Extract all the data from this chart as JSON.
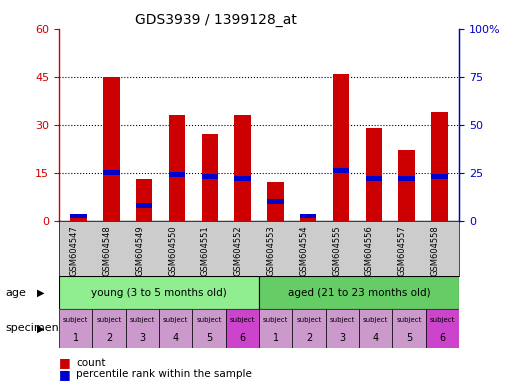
{
  "title": "GDS3939 / 1399128_at",
  "samples": [
    "GSM604547",
    "GSM604548",
    "GSM604549",
    "GSM604550",
    "GSM604551",
    "GSM604552",
    "GSM604553",
    "GSM604554",
    "GSM604555",
    "GSM604556",
    "GSM604557",
    "GSM604558"
  ],
  "count_values": [
    2,
    45,
    13,
    33,
    27,
    33,
    12,
    2,
    46,
    29,
    22,
    34
  ],
  "percentile_values_pct": [
    2.5,
    25,
    8,
    24,
    23,
    22,
    10,
    2.5,
    26,
    22,
    22,
    23
  ],
  "count_color": "#cc0000",
  "percentile_color": "#0000cc",
  "ylim_left": [
    0,
    60
  ],
  "ylim_right": [
    0,
    100
  ],
  "yticks_left": [
    0,
    15,
    30,
    45,
    60
  ],
  "ytick_labels_left": [
    "0",
    "15",
    "30",
    "45",
    "60"
  ],
  "yticks_right": [
    0,
    25,
    50,
    75,
    100
  ],
  "ytick_labels_right": [
    "0",
    "25",
    "50",
    "75",
    "100%"
  ],
  "age_group_young_label": "young (3 to 5 months old)",
  "age_group_aged_label": "aged (21 to 23 months old)",
  "age_group_young_color": "#90ee90",
  "age_group_aged_color": "#66cc66",
  "specimen_colors": [
    "#cc99cc",
    "#cc99cc",
    "#cc99cc",
    "#cc99cc",
    "#cc99cc",
    "#cc44cc",
    "#cc99cc",
    "#cc99cc",
    "#cc99cc",
    "#cc99cc",
    "#cc99cc",
    "#cc44cc"
  ],
  "specimen_numbers": [
    "1",
    "2",
    "3",
    "4",
    "5",
    "6",
    "1",
    "2",
    "3",
    "4",
    "5",
    "6"
  ],
  "bar_width": 0.5,
  "blue_bar_width": 0.5,
  "blue_bar_height": 1.5,
  "background_color": "#ffffff",
  "tick_label_color_left": "#cc0000",
  "tick_label_color_right": "#0000cc",
  "age_label": "age",
  "specimen_label": "specimen",
  "legend_count": "count",
  "legend_pct": "percentile rank within the sample"
}
